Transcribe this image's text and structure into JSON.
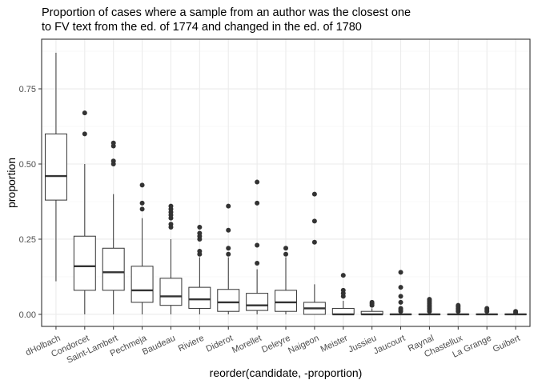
{
  "chart_data": {
    "type": "boxplot",
    "title_lines": [
      "Proportion of cases where a sample from an author was the closest one",
      "to FV text from the ed. of 1774 and changed in the ed. of 1780"
    ],
    "xlabel": "reorder(candidate, -proportion)",
    "ylabel": "proportion",
    "ylim": [
      -0.04,
      0.915
    ],
    "yticks": [
      0.0,
      0.25,
      0.5,
      0.75
    ],
    "ytick_labels": [
      "0.00",
      "0.25",
      "0.50",
      "0.75"
    ],
    "grid": true,
    "categories": [
      "dHolbach",
      "Condorcet",
      "Saint-Lambert",
      "Pechmeja",
      "Baudeau",
      "Riviere",
      "Diderot",
      "Morellet",
      "Deleyre",
      "Naigeon",
      "Meister",
      "Jussieu",
      "Jaucourt",
      "Raynal",
      "Chastellux",
      "La Grange",
      "Guibert"
    ],
    "boxes": [
      {
        "name": "dHolbach",
        "lower": 0.11,
        "q1": 0.38,
        "median": 0.46,
        "q3": 0.6,
        "upper": 0.87,
        "outliers": []
      },
      {
        "name": "Condorcet",
        "lower": 0.0,
        "q1": 0.08,
        "median": 0.16,
        "q3": 0.26,
        "upper": 0.5,
        "outliers": [
          0.6,
          0.67
        ]
      },
      {
        "name": "Saint-Lambert",
        "lower": 0.0,
        "q1": 0.08,
        "median": 0.14,
        "q3": 0.22,
        "upper": 0.4,
        "outliers": [
          0.5,
          0.51,
          0.56,
          0.57
        ]
      },
      {
        "name": "Pechmeja",
        "lower": 0.0,
        "q1": 0.04,
        "median": 0.08,
        "q3": 0.16,
        "upper": 0.32,
        "outliers": [
          0.35,
          0.37,
          0.43
        ]
      },
      {
        "name": "Baudeau",
        "lower": 0.0,
        "q1": 0.03,
        "median": 0.06,
        "q3": 0.12,
        "upper": 0.25,
        "outliers": [
          0.29,
          0.3,
          0.32,
          0.33,
          0.34,
          0.35,
          0.36
        ]
      },
      {
        "name": "Riviere",
        "lower": 0.0,
        "q1": 0.02,
        "median": 0.05,
        "q3": 0.09,
        "upper": 0.19,
        "outliers": [
          0.2,
          0.21,
          0.25,
          0.26,
          0.27,
          0.29
        ]
      },
      {
        "name": "Diderot",
        "lower": 0.0,
        "q1": 0.01,
        "median": 0.04,
        "q3": 0.083,
        "upper": 0.19,
        "outliers": [
          0.2,
          0.22,
          0.28,
          0.36
        ]
      },
      {
        "name": "Morellet",
        "lower": 0.0,
        "q1": 0.013,
        "median": 0.03,
        "q3": 0.07,
        "upper": 0.15,
        "outliers": [
          0.17,
          0.23,
          0.37,
          0.44
        ]
      },
      {
        "name": "Deleyre",
        "lower": 0.0,
        "q1": 0.01,
        "median": 0.04,
        "q3": 0.08,
        "upper": 0.19,
        "outliers": [
          0.2,
          0.22
        ]
      },
      {
        "name": "Naigeon",
        "lower": 0.0,
        "q1": 0.0,
        "median": 0.02,
        "q3": 0.04,
        "upper": 0.1,
        "outliers": [
          0.24,
          0.31,
          0.4
        ]
      },
      {
        "name": "Meister",
        "lower": 0.0,
        "q1": 0.0,
        "median": 0.0,
        "q3": 0.02,
        "upper": 0.045,
        "outliers": [
          0.06,
          0.07,
          0.08,
          0.13
        ]
      },
      {
        "name": "Jussieu",
        "lower": 0.0,
        "q1": 0.0,
        "median": 0.0,
        "q3": 0.01,
        "upper": 0.02,
        "outliers": [
          0.03,
          0.035,
          0.04
        ]
      },
      {
        "name": "Jaucourt",
        "lower": 0.0,
        "q1": 0.0,
        "median": 0.0,
        "q3": 0.0,
        "upper": 0.0,
        "outliers": [
          0.01,
          0.015,
          0.02,
          0.04,
          0.06,
          0.09,
          0.14
        ]
      },
      {
        "name": "Raynal",
        "lower": 0.0,
        "q1": 0.0,
        "median": 0.0,
        "q3": 0.0,
        "upper": 0.0,
        "outliers": [
          0.01,
          0.015,
          0.02,
          0.025,
          0.03,
          0.035,
          0.04,
          0.045,
          0.05
        ]
      },
      {
        "name": "Chastellux",
        "lower": 0.0,
        "q1": 0.0,
        "median": 0.0,
        "q3": 0.0,
        "upper": 0.0,
        "outliers": [
          0.01,
          0.015,
          0.02,
          0.025,
          0.03
        ]
      },
      {
        "name": "La Grange",
        "lower": 0.0,
        "q1": 0.0,
        "median": 0.0,
        "q3": 0.0,
        "upper": 0.0,
        "outliers": [
          0.01,
          0.015,
          0.02
        ]
      },
      {
        "name": "Guibert",
        "lower": 0.0,
        "q1": 0.0,
        "median": 0.0,
        "q3": 0.0,
        "upper": 0.0,
        "outliers": [
          0.005,
          0.01
        ]
      }
    ],
    "colors": {
      "panel_border": "#333333",
      "grid_major": "#ebebeb",
      "grid_minor": "#f5f5f5",
      "box_line": "#333333",
      "outlier": "#333333"
    }
  }
}
